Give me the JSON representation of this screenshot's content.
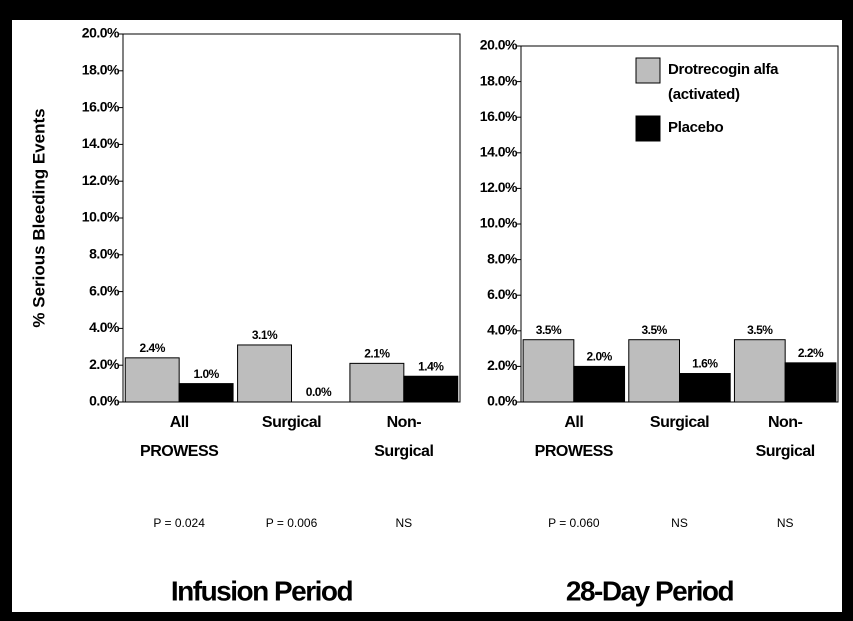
{
  "chart_data": [
    {
      "type": "bar",
      "ylabel": "% Serious Bleeding Events",
      "xlabel": "Infusion Period",
      "categories": [
        [
          "All",
          "PROWESS"
        ],
        [
          "Surgical"
        ],
        [
          "Non-",
          "Surgical"
        ]
      ],
      "annotations": [
        "P = 0.024",
        "P = 0.006",
        "NS"
      ],
      "series": [
        {
          "color": "#bdbdbd",
          "values": [
            2.4,
            3.1,
            2.1
          ],
          "value_labels": [
            "2.4%",
            "3.1%",
            "2.1%"
          ]
        },
        {
          "color": "#000000",
          "values": [
            1.0,
            0.0,
            1.4
          ],
          "value_labels": [
            "1.0%",
            "0.0%",
            "1.4%"
          ]
        }
      ],
      "ylim": [
        0,
        20
      ],
      "yticks": [
        {
          "value": 0,
          "label": "0.0%"
        },
        {
          "value": 2,
          "label": "2.0%"
        },
        {
          "value": 4,
          "label": "4.0%"
        },
        {
          "value": 6,
          "label": "6.0%"
        },
        {
          "value": 8,
          "label": "8.0%"
        },
        {
          "value": 10,
          "label": "10.0%"
        },
        {
          "value": 12,
          "label": "12.0%"
        },
        {
          "value": 14,
          "label": "14.0%"
        },
        {
          "value": 16,
          "label": "16.0%"
        },
        {
          "value": 18,
          "label": "18.0%"
        },
        {
          "value": 20,
          "label": "20.0%"
        }
      ]
    },
    {
      "type": "bar",
      "xlabel": "28-Day Period",
      "legend": "upper right",
      "categories": [
        [
          "All",
          "PROWESS"
        ],
        [
          "Surgical"
        ],
        [
          "Non-",
          "Surgical"
        ]
      ],
      "annotations": [
        "P = 0.060",
        "NS",
        "NS"
      ],
      "series": [
        {
          "name": "Drotrecogin alfa (activated)",
          "color": "#bdbdbd",
          "values": [
            3.5,
            3.5,
            3.5
          ],
          "value_labels": [
            "3.5%",
            "3.5%",
            "3.5%"
          ]
        },
        {
          "name": "Placebo",
          "color": "#000000",
          "values": [
            2.0,
            1.6,
            2.2
          ],
          "value_labels": [
            "2.0%",
            "1.6%",
            "2.2%"
          ]
        }
      ],
      "ylim": [
        0,
        20
      ],
      "yticks": [
        {
          "value": 0,
          "label": "0.0%"
        },
        {
          "value": 2,
          "label": "2.0%"
        },
        {
          "value": 4,
          "label": "4.0%"
        },
        {
          "value": 6,
          "label": "6.0%"
        },
        {
          "value": 8,
          "label": "8.0%"
        },
        {
          "value": 10,
          "label": "10.0%"
        },
        {
          "value": 12,
          "label": "12.0%"
        },
        {
          "value": 14,
          "label": "14.0%"
        },
        {
          "value": 16,
          "label": "16.0%"
        },
        {
          "value": 18,
          "label": "18.0%"
        },
        {
          "value": 20,
          "label": "20.0%"
        }
      ]
    }
  ]
}
